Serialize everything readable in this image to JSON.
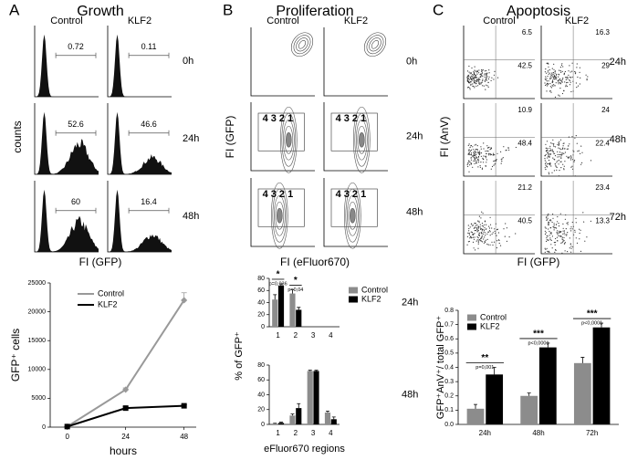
{
  "figure": {
    "panels": [
      {
        "letter": "A",
        "title": "Growth",
        "columns": [
          "Control",
          "KLF2"
        ],
        "rows": [
          "0h",
          "24h",
          "48h"
        ],
        "gates": [
          [
            0.72,
            0.11
          ],
          [
            52.6,
            46.6
          ],
          [
            60,
            16.4
          ]
        ],
        "ylabel": "counts",
        "xlabel": "FI (GFP)"
      },
      {
        "letter": "B",
        "title": "Proliferation",
        "columns": [
          "Control",
          "KLF2"
        ],
        "rows": [
          "0h",
          "24h",
          "48h"
        ],
        "gate_labels": "4 3 2 1",
        "ylabel": "FI (GFP)",
        "xlabel": "FI (eFluor670)"
      },
      {
        "letter": "C",
        "title": "Apoptosis",
        "columns": [
          "Control",
          "KLF2"
        ],
        "rows": [
          "24h",
          "48h",
          "72h"
        ],
        "quadrants": [
          [
            [
              6.5,
              42.5
            ],
            [
              16.3,
              29
            ]
          ],
          [
            [
              10.9,
              48.4
            ],
            [
              24,
              22.4
            ]
          ],
          [
            [
              21.2,
              40.5
            ],
            [
              23.4,
              13.3
            ]
          ]
        ],
        "ylabel": "FI (AnV)",
        "xlabel": "FI (GFP)"
      }
    ]
  },
  "chart_data": [
    {
      "type": "line",
      "x": [
        0,
        24,
        48
      ],
      "xlim": [
        -7,
        53
      ],
      "xticks": [
        0,
        24,
        48
      ],
      "ylim": [
        0,
        25000
      ],
      "yticks": [
        0,
        5000,
        10000,
        15000,
        20000,
        25000
      ],
      "xlabel": "hours",
      "ylabel": "GFP⁺ cells",
      "series": [
        {
          "name": "Control",
          "color": "#999999",
          "values": [
            100,
            6500,
            22000
          ],
          "errors": [
            0,
            300,
            1300
          ]
        },
        {
          "name": "KLF2",
          "color": "#000000",
          "values": [
            100,
            3300,
            3700
          ],
          "errors": [
            0,
            300,
            200
          ]
        }
      ]
    },
    {
      "type": "bar",
      "title": "24h",
      "categories": [
        "1",
        "2",
        "3",
        "4"
      ],
      "ylim": [
        0,
        80
      ],
      "yticks": [
        0,
        20,
        40,
        60,
        80
      ],
      "ylabel": "% of GFP⁺",
      "series": [
        {
          "name": "Control",
          "color": "#8c8c8c",
          "values": [
            45,
            55,
            0,
            0
          ],
          "errors": [
            8,
            6,
            0,
            0
          ]
        },
        {
          "name": "KLF2",
          "color": "#000000",
          "values": [
            68,
            28,
            0,
            0
          ],
          "errors": [
            3,
            4,
            0,
            0
          ]
        }
      ],
      "annotations": [
        {
          "category": "1",
          "text": "*",
          "note": "p=0,036"
        },
        {
          "category": "2",
          "text": "*",
          "note": "p=0,04"
        }
      ]
    },
    {
      "type": "bar",
      "title": "48h",
      "categories": [
        "1",
        "2",
        "3",
        "4"
      ],
      "ylim": [
        0,
        80
      ],
      "yticks": [
        0,
        20,
        40,
        60,
        80
      ],
      "xlabel": "eFluor670 regions",
      "series": [
        {
          "color": "#8c8c8c",
          "values": [
            1,
            12,
            72,
            16
          ],
          "errors": [
            0.5,
            2,
            1,
            2
          ]
        },
        {
          "color": "#000000",
          "values": [
            2,
            22,
            72,
            7
          ],
          "errors": [
            1,
            6,
            1,
            3
          ]
        }
      ]
    },
    {
      "type": "bar",
      "categories": [
        "24h",
        "48h",
        "72h"
      ],
      "ylim": [
        0,
        0.8
      ],
      "yticks": [
        {
          "value": 0,
          "label": "0.0"
        },
        0.1,
        0.2,
        0.3,
        0.4,
        0.5,
        0.6,
        0.7,
        0.8
      ],
      "ylabel": "GFP⁺AnV⁺/ total GFP⁺",
      "series": [
        {
          "name": "Control",
          "color": "#8c8c8c",
          "values": [
            0.11,
            0.2,
            0.43
          ],
          "errors": [
            0.03,
            0.02,
            0.04
          ]
        },
        {
          "name": "KLF2",
          "color": "#000000",
          "values": [
            0.35,
            0.54,
            0.68
          ],
          "errors": [
            0.05,
            0.03,
            0.03
          ]
        }
      ],
      "annotations": [
        {
          "category": "24h",
          "text": "**",
          "note": "p=0,001"
        },
        {
          "category": "48h",
          "text": "***",
          "note": "p<0,0001"
        },
        {
          "category": "72h",
          "text": "***",
          "note": "p<0,0001"
        }
      ]
    }
  ]
}
